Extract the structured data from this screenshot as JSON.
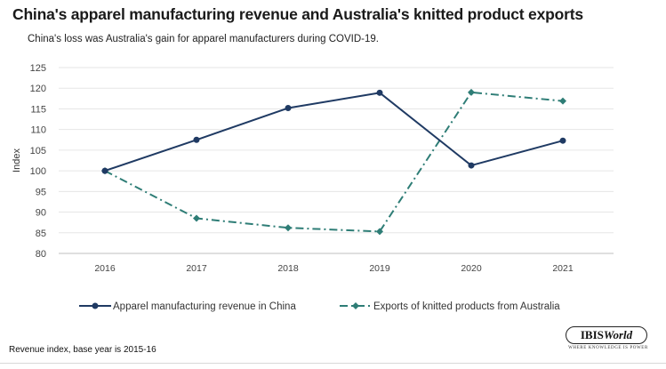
{
  "header": {
    "title": "China's apparel manufacturing revenue and Australia's knitted product exports",
    "subtitle": "China's  loss was Australia's  gain for apparel manufacturers  during COVID-19."
  },
  "footer": {
    "note": "Revenue index, base year is 2015-16"
  },
  "logo": {
    "brand_main": "IBIS",
    "brand_italic": "World",
    "tagline": "WHERE KNOWLEDGE IS POWER"
  },
  "chart_data": {
    "type": "line",
    "categories": [
      "2016",
      "2017",
      "2018",
      "2019",
      "2020",
      "2021"
    ],
    "ylabel": "Index",
    "ylim": [
      80,
      125
    ],
    "yticks": [
      80,
      85,
      90,
      95,
      100,
      105,
      110,
      115,
      120,
      125
    ],
    "grid": true,
    "legend_position": "bottom",
    "series": [
      {
        "name": "Apparel manufacturing revenue in China",
        "values": [
          100,
          107.5,
          115.2,
          118.9,
          101.3,
          107.3
        ],
        "color": "#1f3a63",
        "style": "solid",
        "marker": "circle"
      },
      {
        "name": "Exports of knitted products from Australia",
        "values": [
          100,
          88.5,
          86.2,
          85.3,
          119.0,
          116.9
        ],
        "color": "#2e7d76",
        "style": "dash-dot",
        "marker": "diamond"
      }
    ]
  }
}
